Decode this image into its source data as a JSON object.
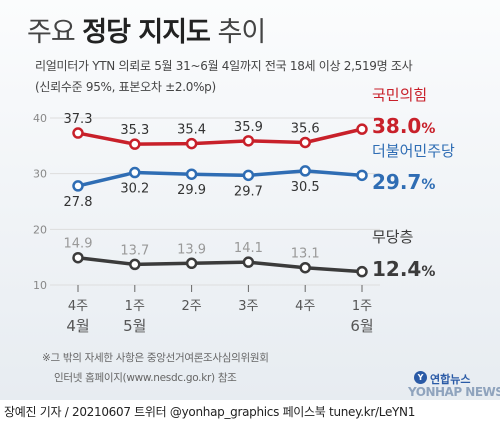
{
  "title": {
    "light": "주요",
    "bold": "정당 지지도",
    "light2": "추이"
  },
  "subtitle": "리얼미터가 YTN 의뢰로 5월 31~6월 4일까지 전국 18세 이상 2,519명 조사",
  "subtitle2": "(신뢰수준 95%, 표본오차 ±2.0%p)",
  "footnote1": "※그 밖의 자세한 사항은 중앙선거여론조사심의위원회",
  "footnote2": "인터넷 홈페이지(www.nesdc.go.kr) 참조",
  "credit": "장예진 기자 / 20210607 트위터 @yonhap_graphics  페이스북 tuney.kr/LeYN1",
  "logo": {
    "mark": "Y",
    "ko": "연합뉴스",
    "en": "YONHAP NEWS"
  },
  "colors": {
    "ppp": "#c8202a",
    "dp": "#2f6db4",
    "none": "#3b3b3b",
    "axis": "#999999",
    "grid": "#dddddd"
  },
  "chart_data": {
    "type": "line",
    "categories": [
      "4주 4월",
      "1주 5월",
      "2주",
      "3주",
      "4주",
      "1주 6월"
    ],
    "x_tick_labels": [
      {
        "top": "4주",
        "bottom": "4월"
      },
      {
        "top": "1주",
        "bottom": "5월"
      },
      {
        "top": "2주",
        "bottom": ""
      },
      {
        "top": "3주",
        "bottom": ""
      },
      {
        "top": "4주",
        "bottom": ""
      },
      {
        "top": "1주",
        "bottom": "6월"
      }
    ],
    "ylim": [
      10,
      40
    ],
    "yticks": [
      10,
      20,
      30,
      40
    ],
    "grid": "horizontal",
    "series": [
      {
        "name": "국민의힘",
        "color": "#c8202a",
        "values": [
          37.3,
          35.3,
          35.4,
          35.9,
          35.6,
          38.0
        ],
        "last_label": "38.0",
        "labels_position": "above"
      },
      {
        "name": "더불어민주당",
        "color": "#2f6db4",
        "values": [
          27.8,
          30.2,
          29.9,
          29.7,
          30.5,
          29.7
        ],
        "last_label": "29.7",
        "labels_position": "below"
      },
      {
        "name": "무당층",
        "color": "#3b3b3b",
        "values": [
          14.9,
          13.7,
          13.9,
          14.1,
          13.1,
          12.4
        ],
        "last_label": "12.4",
        "labels_position": "above"
      }
    ],
    "unit": "%"
  }
}
